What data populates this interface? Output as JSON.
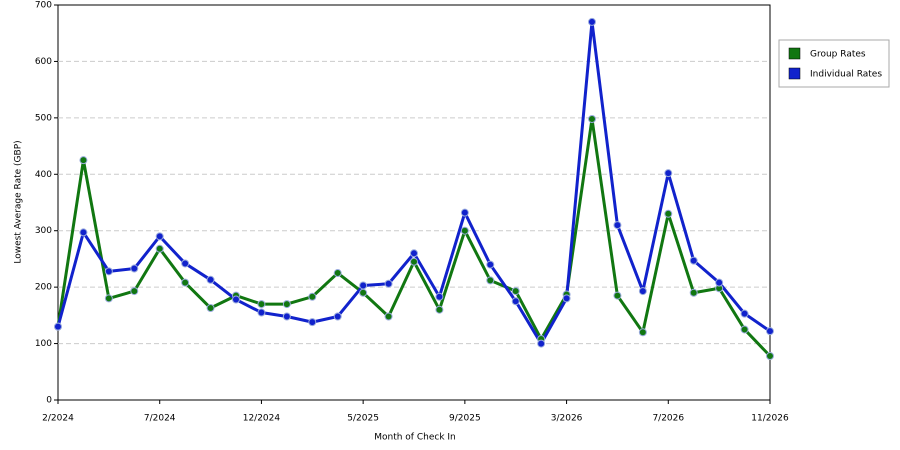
{
  "chart_data": {
    "type": "line",
    "x_label": "Month of Check In",
    "y_label": "Lowest Average Rate (GBP)",
    "categories": [
      "2/2024",
      null,
      null,
      null,
      "7/2024",
      null,
      null,
      null,
      "12/2024",
      null,
      null,
      null,
      "5/2025",
      null,
      null,
      null,
      "9/2025",
      null,
      null,
      null,
      "3/2026",
      null,
      null,
      null,
      "7/2026",
      null,
      null,
      null,
      "11/2026"
    ],
    "series": [
      {
        "name": "Group Rates",
        "color": "#117711",
        "values": [
          130,
          425,
          180,
          193,
          268,
          208,
          163,
          185,
          170,
          170,
          183,
          225,
          190,
          148,
          245,
          160,
          300,
          212,
          193,
          108,
          187,
          498,
          185,
          120,
          330,
          190,
          198,
          125,
          78
        ]
      },
      {
        "name": "Individual Rates",
        "color": "#1122cc",
        "values": [
          130,
          297,
          228,
          233,
          290,
          242,
          213,
          178,
          155,
          148,
          138,
          148,
          203,
          206,
          260,
          183,
          332,
          240,
          175,
          100,
          180,
          670,
          310,
          193,
          402,
          247,
          208,
          153,
          122
        ]
      }
    ],
    "ylim": [
      0,
      700
    ],
    "yticks": [
      0,
      100,
      200,
      300,
      400,
      500,
      600,
      700
    ],
    "grid": true,
    "legend": "right"
  }
}
